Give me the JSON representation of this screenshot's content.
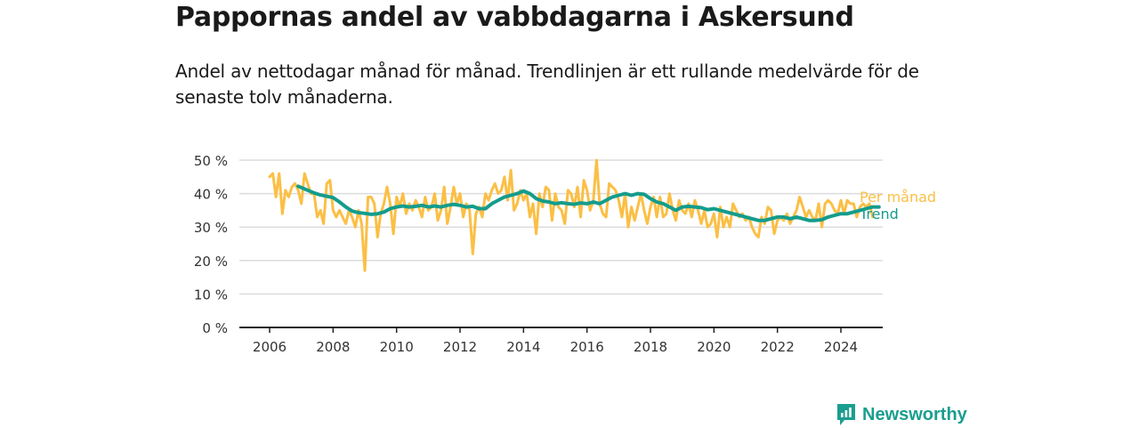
{
  "colors": {
    "monthly": "#fbbf45",
    "trend": "#149c8c",
    "grid": "#dcdcdc",
    "axis": "#222222",
    "brand": "#1a9e8f"
  },
  "header": {
    "title": "Pappornas andel av vabbdagarna i Askersund",
    "subtitle": "Andel av nettodagar månad för månad. Trendlinjen är ett rullande medelvärde för de senaste tolv månaderna."
  },
  "brand": {
    "name": "Newsworthy",
    "icon": "newsworthy-logo-icon"
  },
  "chart_data": {
    "type": "line",
    "title": "Pappornas andel av vabbdagarna i Askersund",
    "xlabel": "",
    "ylabel": "",
    "ylim": [
      0,
      50
    ],
    "xlim": [
      2005.25,
      2025.25
    ],
    "yticks": [
      {
        "value": 0,
        "label": "0 %"
      },
      {
        "value": 10,
        "label": "10 %"
      },
      {
        "value": 20,
        "label": "20 %"
      },
      {
        "value": 30,
        "label": "30 %"
      },
      {
        "value": 40,
        "label": "40 %"
      },
      {
        "value": 50,
        "label": "50 %"
      }
    ],
    "xticks": [
      {
        "value": 2006,
        "label": "2006"
      },
      {
        "value": 2008,
        "label": "2008"
      },
      {
        "value": 2010,
        "label": "2010"
      },
      {
        "value": 2012,
        "label": "2012"
      },
      {
        "value": 2014,
        "label": "2014"
      },
      {
        "value": 2016,
        "label": "2016"
      },
      {
        "value": 2018,
        "label": "2018"
      },
      {
        "value": 2020,
        "label": "2020"
      },
      {
        "value": 2022,
        "label": "2022"
      },
      {
        "value": 2024,
        "label": "2024"
      }
    ],
    "grid": true,
    "legend": "inline-right",
    "series": [
      {
        "name": "Per månad",
        "color": "#fbbf45",
        "points": [
          [
            2006.0,
            45
          ],
          [
            2006.1,
            46
          ],
          [
            2006.2,
            39
          ],
          [
            2006.3,
            46
          ],
          [
            2006.4,
            34
          ],
          [
            2006.5,
            41
          ],
          [
            2006.6,
            39
          ],
          [
            2006.7,
            42
          ],
          [
            2006.8,
            43
          ],
          [
            2006.9,
            41
          ],
          [
            2007.0,
            37
          ],
          [
            2007.1,
            46
          ],
          [
            2007.2,
            43
          ],
          [
            2007.3,
            40
          ],
          [
            2007.4,
            40
          ],
          [
            2007.5,
            33
          ],
          [
            2007.6,
            35
          ],
          [
            2007.7,
            31
          ],
          [
            2007.8,
            43
          ],
          [
            2007.9,
            44
          ],
          [
            2008.0,
            35
          ],
          [
            2008.1,
            33
          ],
          [
            2008.2,
            35
          ],
          [
            2008.3,
            33
          ],
          [
            2008.4,
            31
          ],
          [
            2008.5,
            35
          ],
          [
            2008.6,
            33
          ],
          [
            2008.7,
            30
          ],
          [
            2008.8,
            35
          ],
          [
            2008.9,
            31
          ],
          [
            2009.0,
            17
          ],
          [
            2009.1,
            39
          ],
          [
            2009.2,
            39
          ],
          [
            2009.3,
            37
          ],
          [
            2009.4,
            27
          ],
          [
            2009.5,
            34
          ],
          [
            2009.6,
            37
          ],
          [
            2009.7,
            42
          ],
          [
            2009.8,
            37
          ],
          [
            2009.9,
            28
          ],
          [
            2010.0,
            39
          ],
          [
            2010.1,
            36
          ],
          [
            2010.2,
            40
          ],
          [
            2010.3,
            34
          ],
          [
            2010.4,
            37
          ],
          [
            2010.5,
            35
          ],
          [
            2010.6,
            38
          ],
          [
            2010.7,
            36
          ],
          [
            2010.8,
            33
          ],
          [
            2010.9,
            39
          ],
          [
            2011.0,
            35
          ],
          [
            2011.1,
            36
          ],
          [
            2011.2,
            40
          ],
          [
            2011.3,
            32
          ],
          [
            2011.4,
            35
          ],
          [
            2011.5,
            42
          ],
          [
            2011.6,
            31
          ],
          [
            2011.7,
            36
          ],
          [
            2011.8,
            42
          ],
          [
            2011.9,
            37
          ],
          [
            2012.0,
            40
          ],
          [
            2012.1,
            33
          ],
          [
            2012.2,
            37
          ],
          [
            2012.3,
            35
          ],
          [
            2012.4,
            22
          ],
          [
            2012.5,
            34
          ],
          [
            2012.6,
            36
          ],
          [
            2012.7,
            33
          ],
          [
            2012.8,
            40
          ],
          [
            2012.9,
            38
          ],
          [
            2013.0,
            41
          ],
          [
            2013.1,
            43
          ],
          [
            2013.2,
            40
          ],
          [
            2013.3,
            41
          ],
          [
            2013.4,
            45
          ],
          [
            2013.5,
            38
          ],
          [
            2013.6,
            47
          ],
          [
            2013.7,
            35
          ],
          [
            2013.8,
            37
          ],
          [
            2013.9,
            41
          ],
          [
            2014.0,
            38
          ],
          [
            2014.1,
            40
          ],
          [
            2014.2,
            33
          ],
          [
            2014.3,
            37
          ],
          [
            2014.4,
            28
          ],
          [
            2014.5,
            40
          ],
          [
            2014.6,
            36
          ],
          [
            2014.7,
            42
          ],
          [
            2014.8,
            41
          ],
          [
            2014.9,
            32
          ],
          [
            2015.0,
            40
          ],
          [
            2015.1,
            36
          ],
          [
            2015.2,
            35
          ],
          [
            2015.3,
            31
          ],
          [
            2015.4,
            41
          ],
          [
            2015.5,
            40
          ],
          [
            2015.6,
            36
          ],
          [
            2015.7,
            42
          ],
          [
            2015.8,
            33
          ],
          [
            2015.9,
            44
          ],
          [
            2016.0,
            41
          ],
          [
            2016.1,
            35
          ],
          [
            2016.2,
            38
          ],
          [
            2016.3,
            50
          ],
          [
            2016.4,
            37
          ],
          [
            2016.5,
            34
          ],
          [
            2016.6,
            33
          ],
          [
            2016.7,
            43
          ],
          [
            2016.8,
            42
          ],
          [
            2016.9,
            41
          ],
          [
            2017.0,
            38
          ],
          [
            2017.1,
            33
          ],
          [
            2017.2,
            40
          ],
          [
            2017.3,
            30
          ],
          [
            2017.4,
            36
          ],
          [
            2017.5,
            32
          ],
          [
            2017.6,
            36
          ],
          [
            2017.7,
            40
          ],
          [
            2017.8,
            35
          ],
          [
            2017.9,
            31
          ],
          [
            2018.0,
            36
          ],
          [
            2018.1,
            39
          ],
          [
            2018.2,
            33
          ],
          [
            2018.3,
            39
          ],
          [
            2018.4,
            33
          ],
          [
            2018.5,
            34
          ],
          [
            2018.6,
            40
          ],
          [
            2018.7,
            35
          ],
          [
            2018.8,
            32
          ],
          [
            2018.9,
            38
          ],
          [
            2019.0,
            35
          ],
          [
            2019.1,
            34
          ],
          [
            2019.2,
            37
          ],
          [
            2019.3,
            33
          ],
          [
            2019.4,
            38
          ],
          [
            2019.5,
            35
          ],
          [
            2019.6,
            31
          ],
          [
            2019.7,
            35
          ],
          [
            2019.8,
            30
          ],
          [
            2019.9,
            31
          ],
          [
            2020.0,
            34
          ],
          [
            2020.1,
            27
          ],
          [
            2020.2,
            36
          ],
          [
            2020.3,
            30
          ],
          [
            2020.4,
            33
          ],
          [
            2020.5,
            30
          ],
          [
            2020.6,
            37
          ],
          [
            2020.7,
            35
          ],
          [
            2020.8,
            33
          ],
          [
            2020.9,
            34
          ],
          [
            2021.0,
            32
          ],
          [
            2021.1,
            33
          ],
          [
            2021.2,
            30
          ],
          [
            2021.3,
            28
          ],
          [
            2021.4,
            27
          ],
          [
            2021.5,
            33
          ],
          [
            2021.6,
            31
          ],
          [
            2021.7,
            36
          ],
          [
            2021.8,
            35
          ],
          [
            2021.9,
            28
          ],
          [
            2022.0,
            32
          ],
          [
            2022.1,
            33
          ],
          [
            2022.2,
            32
          ],
          [
            2022.3,
            34
          ],
          [
            2022.4,
            31
          ],
          [
            2022.5,
            33
          ],
          [
            2022.6,
            35
          ],
          [
            2022.7,
            39
          ],
          [
            2022.8,
            36
          ],
          [
            2022.9,
            33
          ],
          [
            2023.0,
            35
          ],
          [
            2023.1,
            33
          ],
          [
            2023.2,
            32
          ],
          [
            2023.3,
            37
          ],
          [
            2023.4,
            30
          ],
          [
            2023.5,
            37
          ],
          [
            2023.6,
            38
          ],
          [
            2023.7,
            37
          ],
          [
            2023.8,
            35
          ],
          [
            2023.9,
            34
          ],
          [
            2024.0,
            38
          ],
          [
            2024.1,
            34
          ],
          [
            2024.2,
            38
          ],
          [
            2024.3,
            37
          ],
          [
            2024.4,
            37
          ],
          [
            2024.5,
            33
          ],
          [
            2024.6,
            36
          ],
          [
            2024.7,
            37
          ],
          [
            2024.8,
            36
          ],
          [
            2024.9,
            37
          ],
          [
            2025.0,
            33
          ]
        ]
      },
      {
        "name": "Trend",
        "color": "#149c8c",
        "points": [
          [
            2006.9,
            42.2
          ],
          [
            2007.0,
            41.8
          ],
          [
            2007.2,
            41.0
          ],
          [
            2007.4,
            40.2
          ],
          [
            2007.6,
            39.6
          ],
          [
            2007.8,
            39.2
          ],
          [
            2008.0,
            38.8
          ],
          [
            2008.2,
            37.5
          ],
          [
            2008.4,
            36.0
          ],
          [
            2008.6,
            34.8
          ],
          [
            2008.8,
            34.3
          ],
          [
            2009.0,
            34.1
          ],
          [
            2009.2,
            33.8
          ],
          [
            2009.4,
            34.0
          ],
          [
            2009.6,
            34.5
          ],
          [
            2009.8,
            35.5
          ],
          [
            2010.0,
            36.0
          ],
          [
            2010.2,
            36.3
          ],
          [
            2010.4,
            36.0
          ],
          [
            2010.6,
            36.2
          ],
          [
            2010.8,
            36.5
          ],
          [
            2011.0,
            36.0
          ],
          [
            2011.2,
            36.3
          ],
          [
            2011.4,
            36.0
          ],
          [
            2011.6,
            36.5
          ],
          [
            2011.8,
            36.8
          ],
          [
            2012.0,
            36.5
          ],
          [
            2012.2,
            36.0
          ],
          [
            2012.4,
            36.2
          ],
          [
            2012.6,
            35.5
          ],
          [
            2012.8,
            35.5
          ],
          [
            2013.0,
            37.0
          ],
          [
            2013.2,
            38.0
          ],
          [
            2013.4,
            39.0
          ],
          [
            2013.6,
            39.5
          ],
          [
            2013.8,
            40.0
          ],
          [
            2014.0,
            40.8
          ],
          [
            2014.2,
            40.0
          ],
          [
            2014.4,
            38.5
          ],
          [
            2014.6,
            37.8
          ],
          [
            2014.8,
            37.5
          ],
          [
            2015.0,
            37.0
          ],
          [
            2015.2,
            37.3
          ],
          [
            2015.4,
            37.0
          ],
          [
            2015.6,
            36.8
          ],
          [
            2015.8,
            37.2
          ],
          [
            2016.0,
            37.0
          ],
          [
            2016.2,
            37.5
          ],
          [
            2016.4,
            37.0
          ],
          [
            2016.6,
            38.0
          ],
          [
            2016.8,
            39.0
          ],
          [
            2017.0,
            39.5
          ],
          [
            2017.2,
            40.0
          ],
          [
            2017.4,
            39.5
          ],
          [
            2017.6,
            40.0
          ],
          [
            2017.8,
            39.8
          ],
          [
            2018.0,
            38.5
          ],
          [
            2018.2,
            37.5
          ],
          [
            2018.4,
            37.0
          ],
          [
            2018.6,
            36.0
          ],
          [
            2018.8,
            35.0
          ],
          [
            2019.0,
            36.0
          ],
          [
            2019.2,
            36.2
          ],
          [
            2019.4,
            36.0
          ],
          [
            2019.6,
            35.8
          ],
          [
            2019.8,
            35.2
          ],
          [
            2020.0,
            35.5
          ],
          [
            2020.2,
            35.0
          ],
          [
            2020.4,
            34.5
          ],
          [
            2020.6,
            34.0
          ],
          [
            2020.8,
            33.5
          ],
          [
            2021.0,
            33.0
          ],
          [
            2021.2,
            32.5
          ],
          [
            2021.4,
            32.0
          ],
          [
            2021.6,
            32.0
          ],
          [
            2021.8,
            32.5
          ],
          [
            2022.0,
            33.0
          ],
          [
            2022.2,
            33.0
          ],
          [
            2022.4,
            32.5
          ],
          [
            2022.6,
            33.0
          ],
          [
            2022.8,
            32.5
          ],
          [
            2023.0,
            32.0
          ],
          [
            2023.2,
            32.0
          ],
          [
            2023.4,
            32.2
          ],
          [
            2023.6,
            33.0
          ],
          [
            2023.8,
            33.5
          ],
          [
            2024.0,
            34.0
          ],
          [
            2024.2,
            34.0
          ],
          [
            2024.4,
            34.5
          ],
          [
            2024.6,
            35.0
          ],
          [
            2024.8,
            35.5
          ],
          [
            2025.0,
            36.0
          ],
          [
            2025.2,
            36.0
          ]
        ]
      }
    ]
  }
}
